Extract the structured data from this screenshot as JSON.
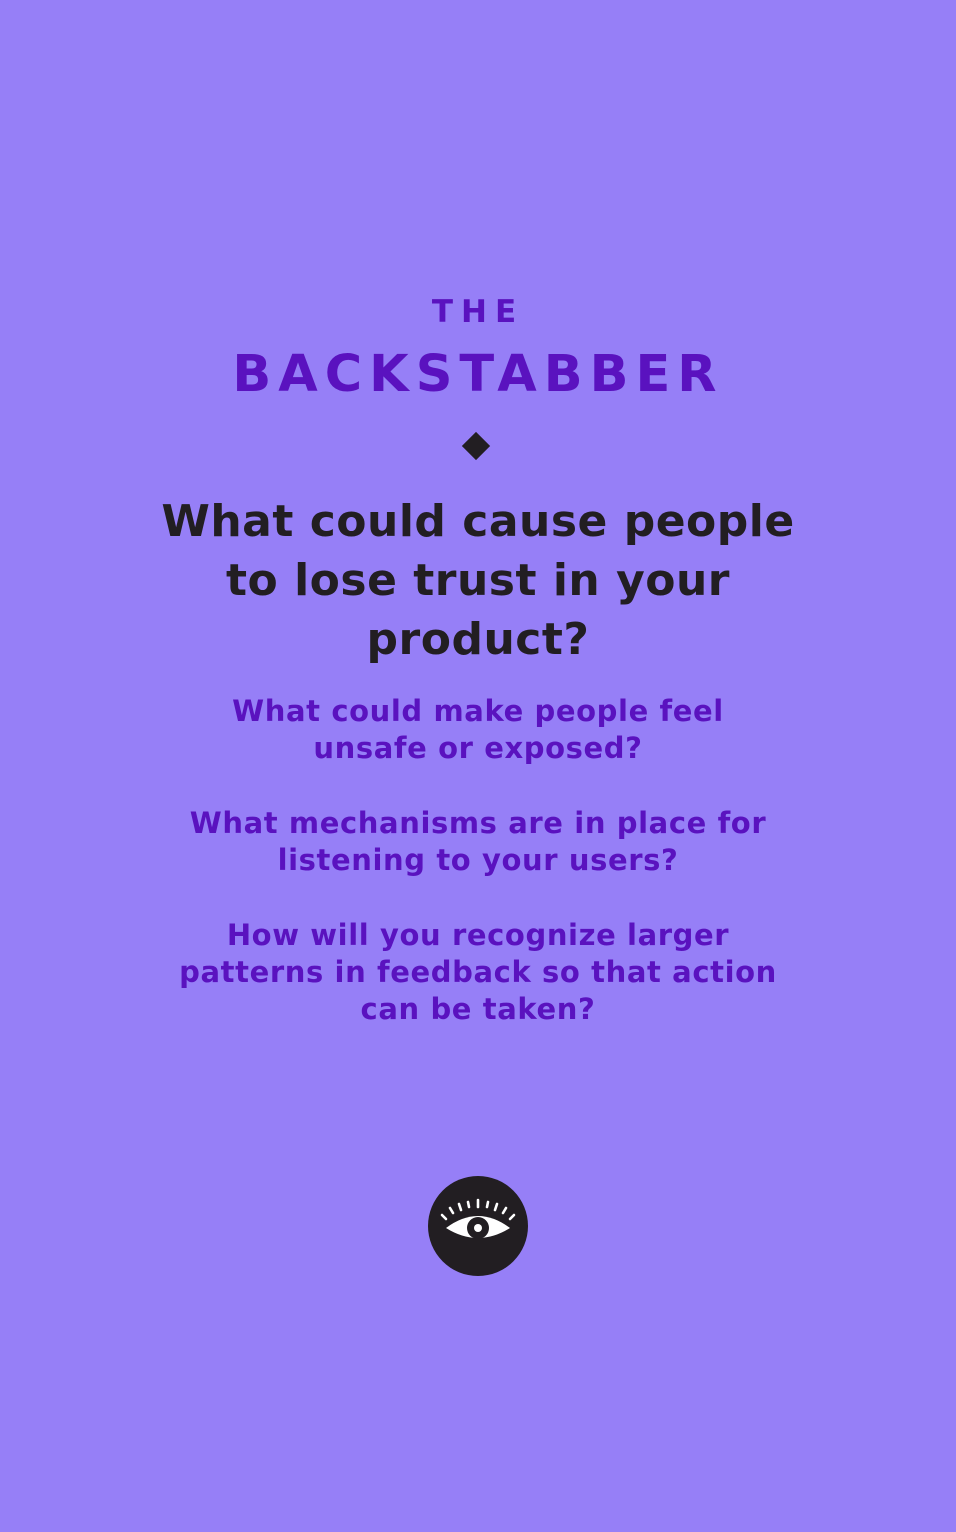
{
  "card": {
    "eyebrow": "THE",
    "title": "BACKSTABBER",
    "main_question": "What could cause people to lose trust in your product?",
    "sub_questions": [
      "What could make people feel unsafe or exposed?",
      "What mechanisms are in place for listening to your users?",
      "How will you recognize larger patterns in feedback so that action can be taken?"
    ],
    "badge_icon": "eye-icon"
  },
  "colors": {
    "background": "#967ff7",
    "accent": "#5a12bf",
    "ink": "#221e22",
    "icon": "#ffffff"
  }
}
